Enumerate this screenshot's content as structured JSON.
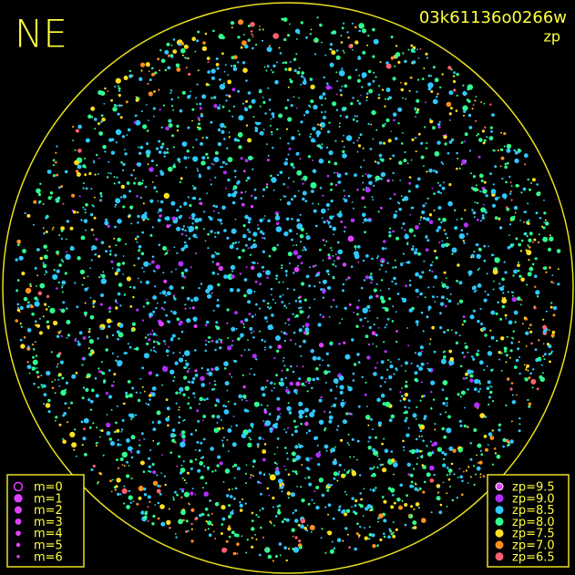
{
  "header": {
    "corner": "NE",
    "frame_id": "03k61136o0266w",
    "mode": "zp"
  },
  "legend_magnitude": [
    {
      "label": "m=0"
    },
    {
      "label": "m=1"
    },
    {
      "label": "m=2"
    },
    {
      "label": "m=3"
    },
    {
      "label": "m=4"
    },
    {
      "label": "m=5"
    },
    {
      "label": "m=6"
    }
  ],
  "legend_zp": [
    {
      "label": "zp=9.5",
      "color": "#e040ff"
    },
    {
      "label": "zp=9.0",
      "color": "#b030ff"
    },
    {
      "label": "zp=8.5",
      "color": "#30c8ff"
    },
    {
      "label": "zp=8.0",
      "color": "#30ff90"
    },
    {
      "label": "zp=7.5",
      "color": "#ffe020"
    },
    {
      "label": "zp=7.0",
      "color": "#ff9020"
    },
    {
      "label": "zp=6.5",
      "color": "#ff6070"
    }
  ]
}
